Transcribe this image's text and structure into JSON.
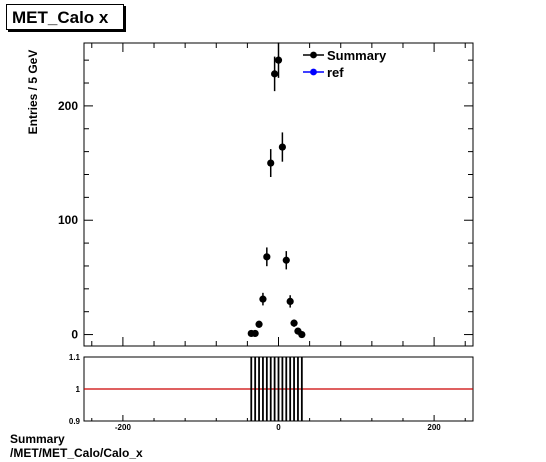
{
  "title": "MET_Calo  x",
  "footer": {
    "line1": "Summary",
    "line2": "/MET/MET_Calo/Calo_x"
  },
  "legend": {
    "items": [
      {
        "label": "Summary",
        "color": "#000000"
      },
      {
        "label": "ref",
        "color": "#0000ff"
      }
    ]
  },
  "chart_data": [
    {
      "type": "scatter",
      "ylabel": "Entries / 5 GeV",
      "xlim": [
        -250,
        250
      ],
      "ylim": [
        -10,
        255
      ],
      "yticks": [
        0,
        100,
        200
      ],
      "xticks": [
        -200,
        0,
        200
      ],
      "legend_placement": "top-right",
      "series": [
        {
          "name": "Summary",
          "color": "#000000",
          "x": [
            -35,
            -30,
            -25,
            -20,
            -15,
            -10,
            -5,
            0,
            5,
            10,
            15,
            20,
            25,
            30
          ],
          "y": [
            1,
            1,
            9,
            31,
            68,
            150,
            228,
            240,
            164,
            65,
            29,
            10,
            3,
            0
          ],
          "yerr": [
            1,
            1,
            3,
            5.5,
            8.2,
            12.2,
            15.1,
            15.5,
            12.8,
            8,
            5.4,
            3.2,
            1.7,
            0
          ]
        },
        {
          "name": "ref",
          "color": "#0000ff",
          "x": [],
          "y": []
        }
      ]
    },
    {
      "type": "line",
      "xlim": [
        -250,
        250
      ],
      "ylim": [
        0.9,
        1.1
      ],
      "yticks": [
        0.9,
        1,
        1.1
      ],
      "ytick_labels": [
        "0.9",
        "1",
        "1.1"
      ],
      "xticks": [
        -200,
        0,
        200
      ],
      "reference_line": 1,
      "reference_color": "#cc0000",
      "ratio_bins": [
        -35,
        -30,
        -25,
        -20,
        -15,
        -10,
        -5,
        0,
        5,
        10,
        15,
        20,
        25,
        30
      ]
    }
  ]
}
